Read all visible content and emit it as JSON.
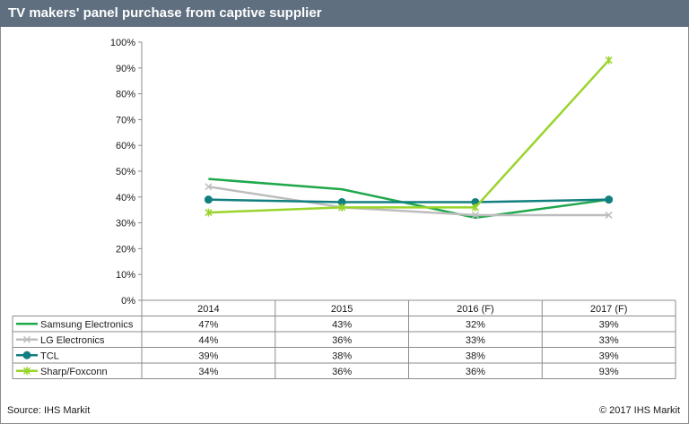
{
  "header": {
    "title": "TV makers' panel purchase from captive supplier"
  },
  "footer": {
    "source": "Source: IHS Markit",
    "copyright": "© 2017 IHS Markit"
  },
  "chart_data": {
    "type": "line",
    "title": "TV makers' panel purchase from captive supplier",
    "xlabel": "",
    "ylabel": "",
    "ylim": [
      0,
      100
    ],
    "y_ticks": [
      "0%",
      "10%",
      "20%",
      "30%",
      "40%",
      "50%",
      "60%",
      "70%",
      "80%",
      "90%",
      "100%"
    ],
    "grid": false,
    "legend": "data-table",
    "categories": [
      "2014",
      "2015",
      "2016 (F)",
      "2017 (F)"
    ],
    "series": [
      {
        "name": "Samsung Electronics",
        "values": [
          47,
          43,
          32,
          39
        ],
        "labels": [
          "47%",
          "43%",
          "32%",
          "39%"
        ],
        "color": "#1fa84c",
        "marker": "none"
      },
      {
        "name": "LG Electronics",
        "values": [
          44,
          36,
          33,
          33
        ],
        "labels": [
          "44%",
          "36%",
          "33%",
          "33%"
        ],
        "color": "#bdbdbd",
        "marker": "x"
      },
      {
        "name": "TCL",
        "values": [
          39,
          38,
          38,
          39
        ],
        "labels": [
          "39%",
          "38%",
          "38%",
          "39%"
        ],
        "color": "#117f7f",
        "marker": "circle"
      },
      {
        "name": "Sharp/Foxconn",
        "values": [
          34,
          36,
          36,
          93
        ],
        "labels": [
          "34%",
          "36%",
          "36%",
          "93%"
        ],
        "color": "#99d42a",
        "marker": "star"
      }
    ]
  }
}
